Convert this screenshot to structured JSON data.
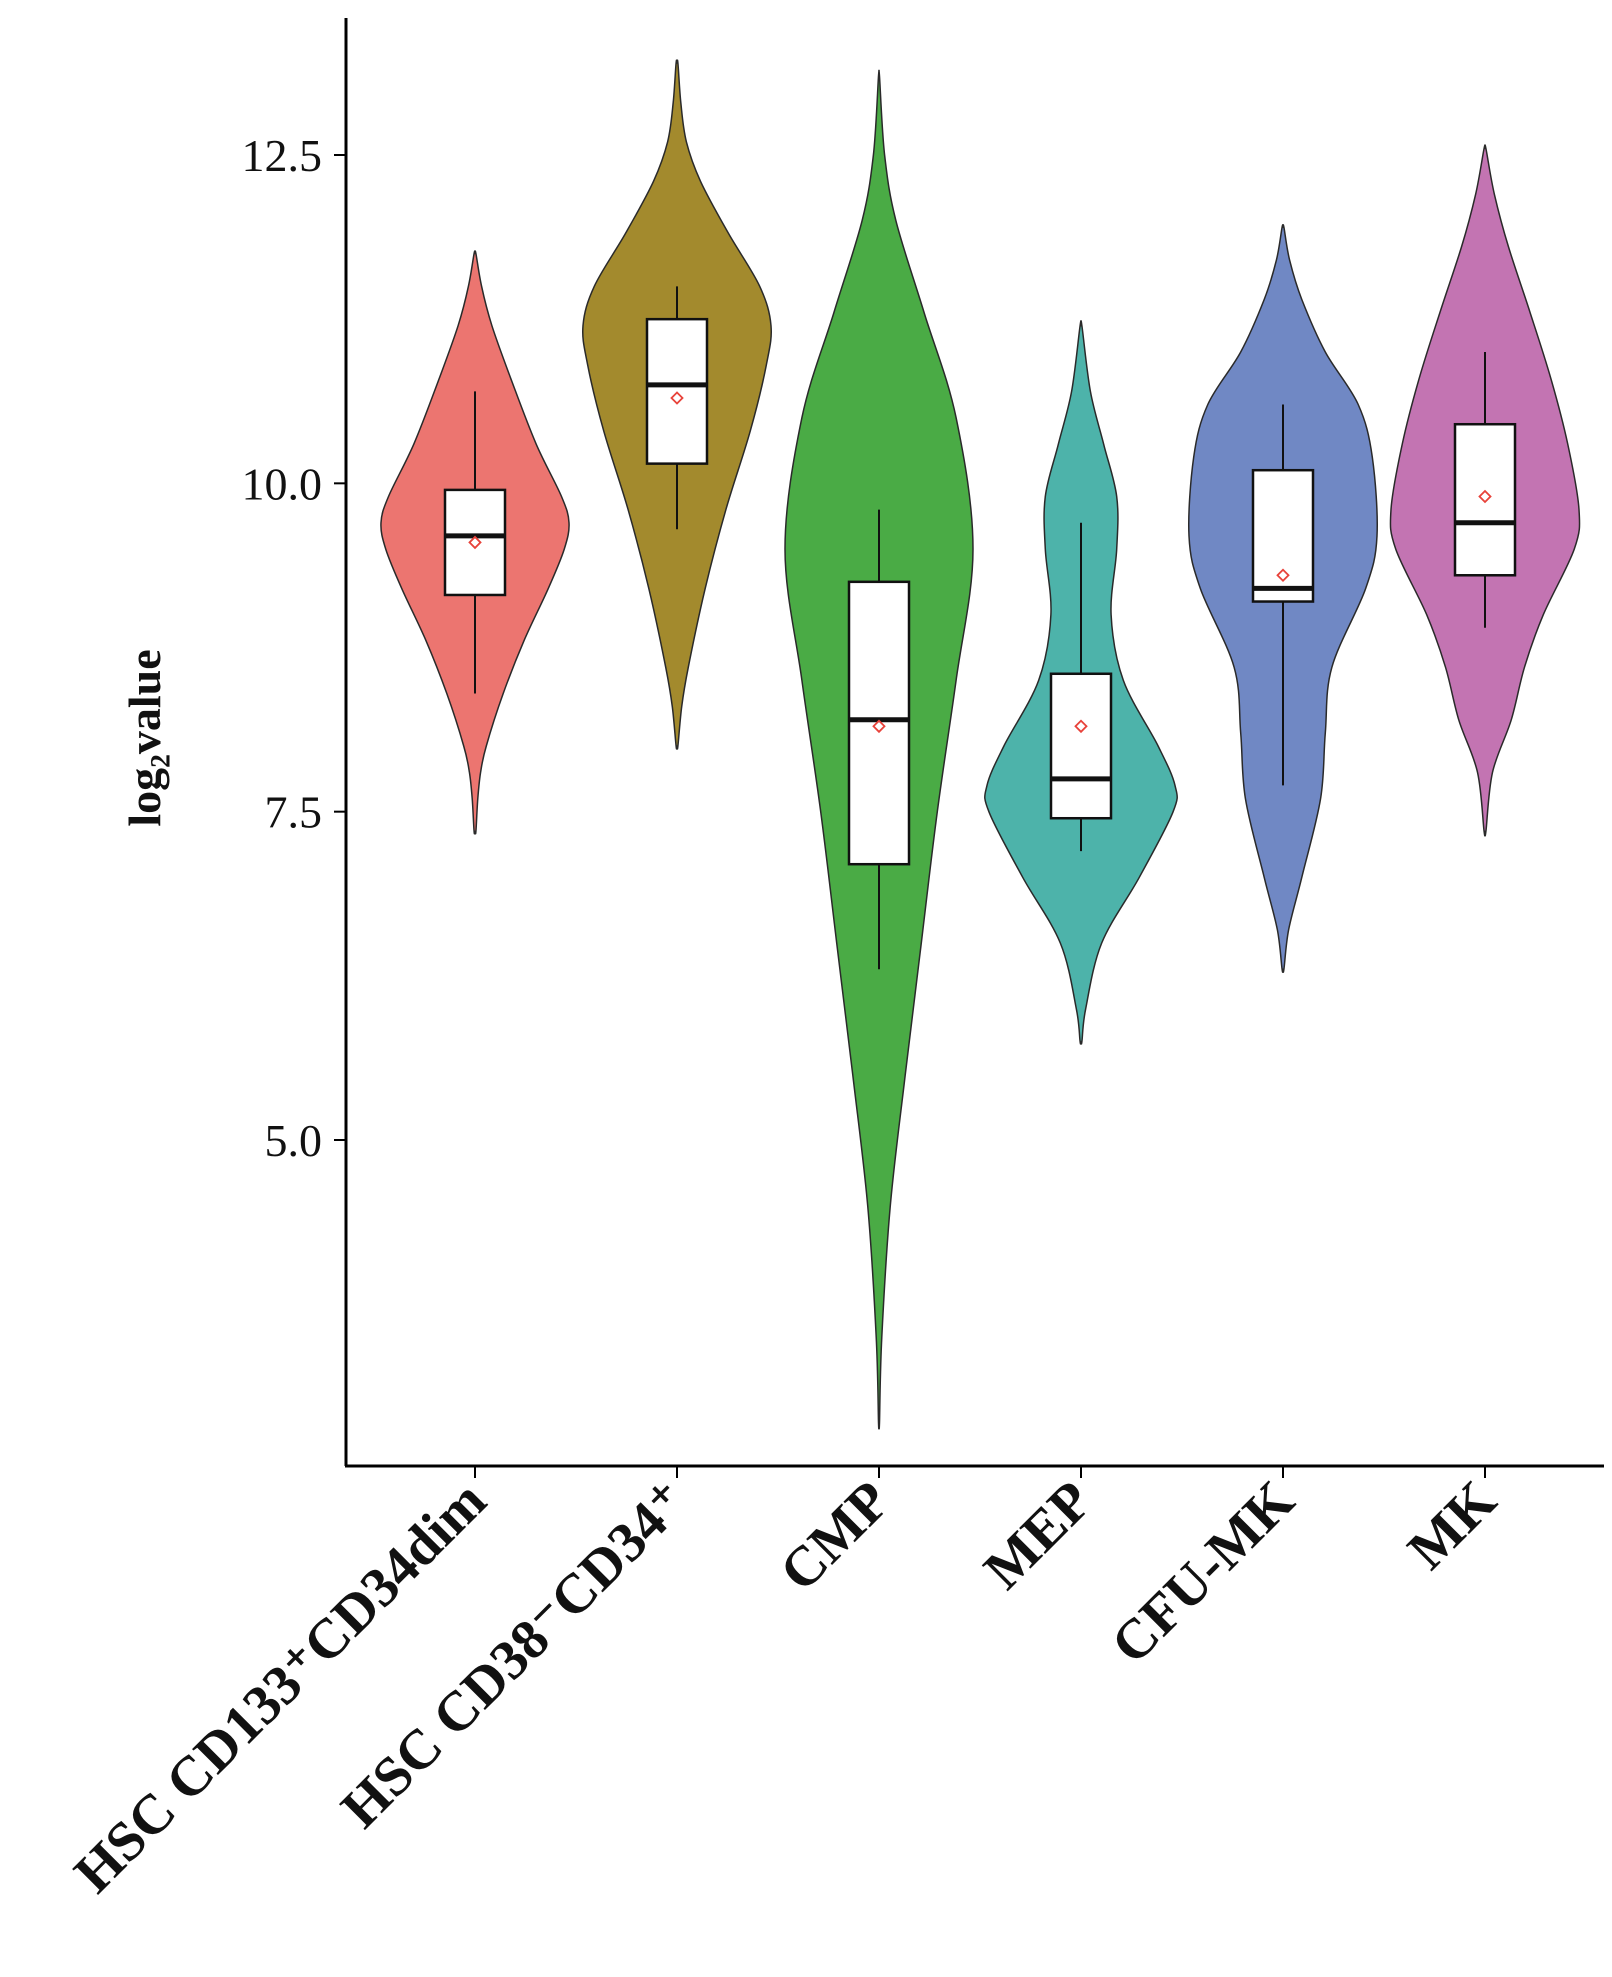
{
  "chart_data": {
    "type": "violin",
    "ylabel": "log₂value",
    "ylim": [
      2.5,
      13.5
    ],
    "yticks": [
      {
        "value": 5.0,
        "label": "5.0"
      },
      {
        "value": 7.5,
        "label": "7.5"
      },
      {
        "value": 10.0,
        "label": "10.0"
      },
      {
        "value": 12.5,
        "label": "12.5"
      }
    ],
    "grid": false,
    "legend": "none",
    "categories": [
      "HSC CD133⁺CD34dim",
      "HSC CD38⁻CD34⁺",
      "CMP",
      "MEP",
      "CFU-MK",
      "MK"
    ],
    "series": [
      {
        "color": "#ec7570",
        "min": 7.35,
        "max": 11.75,
        "q1": 9.15,
        "median": 9.6,
        "q3": 9.95,
        "whisker_low": 8.4,
        "whisker_high": 10.7,
        "mean": 9.55,
        "density": [
          [
            7.35,
            0.01
          ],
          [
            7.6,
            0.03
          ],
          [
            7.8,
            0.06
          ],
          [
            8.0,
            0.12
          ],
          [
            8.4,
            0.3
          ],
          [
            8.8,
            0.52
          ],
          [
            9.2,
            0.78
          ],
          [
            9.5,
            0.95
          ],
          [
            9.7,
            1.0
          ],
          [
            9.9,
            0.92
          ],
          [
            10.3,
            0.65
          ],
          [
            10.8,
            0.38
          ],
          [
            11.2,
            0.18
          ],
          [
            11.5,
            0.07
          ],
          [
            11.75,
            0.01
          ]
        ]
      },
      {
        "color": "#a38a2d",
        "min": 8.0,
        "max": 13.2,
        "q1": 10.15,
        "median": 10.75,
        "q3": 11.25,
        "whisker_low": 9.65,
        "whisker_high": 11.5,
        "mean": 10.65,
        "density": [
          [
            8.0,
            0.01
          ],
          [
            8.3,
            0.05
          ],
          [
            8.6,
            0.12
          ],
          [
            9.2,
            0.3
          ],
          [
            9.8,
            0.52
          ],
          [
            10.4,
            0.78
          ],
          [
            10.9,
            0.95
          ],
          [
            11.2,
            1.0
          ],
          [
            11.5,
            0.88
          ],
          [
            11.9,
            0.55
          ],
          [
            12.3,
            0.25
          ],
          [
            12.6,
            0.1
          ],
          [
            12.9,
            0.04
          ],
          [
            13.2,
            0.01
          ]
        ]
      },
      {
        "color": "#4aab45",
        "min": 2.85,
        "max": 13.1,
        "q1": 7.1,
        "median": 8.2,
        "q3": 9.25,
        "whisker_low": 6.3,
        "whisker_high": 9.8,
        "mean": 8.15,
        "density": [
          [
            2.85,
            0.005
          ],
          [
            3.5,
            0.03
          ],
          [
            4.5,
            0.12
          ],
          [
            5.5,
            0.28
          ],
          [
            6.5,
            0.45
          ],
          [
            7.5,
            0.62
          ],
          [
            8.5,
            0.82
          ],
          [
            9.5,
            1.0
          ],
          [
            10.5,
            0.82
          ],
          [
            11.3,
            0.48
          ],
          [
            12.0,
            0.18
          ],
          [
            12.5,
            0.06
          ],
          [
            13.1,
            0.005
          ]
        ]
      },
      {
        "color": "#4db3aa",
        "min": 5.75,
        "max": 11.2,
        "q1": 7.45,
        "median": 7.75,
        "q3": 8.55,
        "whisker_low": 7.2,
        "whisker_high": 9.7,
        "mean": 8.15,
        "density": [
          [
            5.75,
            0.01
          ],
          [
            6.0,
            0.05
          ],
          [
            6.5,
            0.22
          ],
          [
            7.0,
            0.62
          ],
          [
            7.5,
            0.98
          ],
          [
            7.7,
            1.0
          ],
          [
            8.0,
            0.82
          ],
          [
            8.5,
            0.45
          ],
          [
            9.0,
            0.32
          ],
          [
            9.5,
            0.38
          ],
          [
            9.9,
            0.38
          ],
          [
            10.3,
            0.24
          ],
          [
            10.7,
            0.1
          ],
          [
            11.2,
            0.01
          ]
        ]
      },
      {
        "color": "#7088c4",
        "min": 6.3,
        "max": 11.95,
        "q1": 9.1,
        "median": 9.2,
        "q3": 10.1,
        "whisker_low": 7.7,
        "whisker_high": 10.6,
        "mean": 9.3,
        "density": [
          [
            6.3,
            0.01
          ],
          [
            6.6,
            0.06
          ],
          [
            7.0,
            0.2
          ],
          [
            7.6,
            0.4
          ],
          [
            8.1,
            0.45
          ],
          [
            8.6,
            0.52
          ],
          [
            9.2,
            0.88
          ],
          [
            9.6,
            1.0
          ],
          [
            10.2,
            0.95
          ],
          [
            10.6,
            0.8
          ],
          [
            11.0,
            0.45
          ],
          [
            11.4,
            0.2
          ],
          [
            11.7,
            0.07
          ],
          [
            11.95,
            0.01
          ]
        ]
      },
      {
        "color": "#c374b2",
        "min": 7.35,
        "max": 12.55,
        "q1": 9.3,
        "median": 9.7,
        "q3": 10.45,
        "whisker_low": 8.9,
        "whisker_high": 11.0,
        "mean": 9.9,
        "density": [
          [
            7.35,
            0.01
          ],
          [
            7.8,
            0.08
          ],
          [
            8.2,
            0.28
          ],
          [
            8.6,
            0.42
          ],
          [
            9.0,
            0.62
          ],
          [
            9.5,
            0.95
          ],
          [
            9.8,
            1.0
          ],
          [
            10.3,
            0.88
          ],
          [
            10.8,
            0.7
          ],
          [
            11.3,
            0.48
          ],
          [
            11.8,
            0.25
          ],
          [
            12.2,
            0.1
          ],
          [
            12.55,
            0.01
          ]
        ]
      }
    ]
  }
}
